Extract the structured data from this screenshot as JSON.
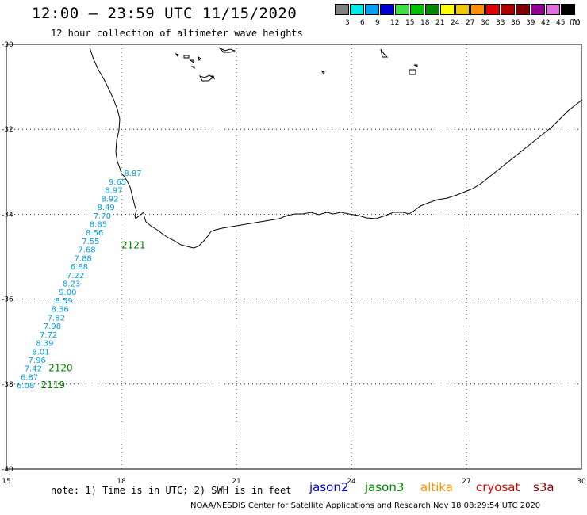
{
  "header": {
    "title": "12:00 — 23:59 UTC 11/15/2020",
    "subtitle": "12 hour collection of altimeter wave heights"
  },
  "color_scale": {
    "unit": "(ft)",
    "bins": [
      {
        "label": "3",
        "color": "#808080"
      },
      {
        "label": "6",
        "color": "#00e8e8"
      },
      {
        "label": "9",
        "color": "#00a0f0"
      },
      {
        "label": "12",
        "color": "#0000d0"
      },
      {
        "label": "15",
        "color": "#40e040"
      },
      {
        "label": "18",
        "color": "#00c000"
      },
      {
        "label": "21",
        "color": "#008800"
      },
      {
        "label": "24",
        "color": "#ffff00"
      },
      {
        "label": "27",
        "color": "#f0c800"
      },
      {
        "label": "30",
        "color": "#ff9000"
      },
      {
        "label": "33",
        "color": "#e00000"
      },
      {
        "label": "36",
        "color": "#b00000"
      },
      {
        "label": "39",
        "color": "#800000"
      },
      {
        "label": "42",
        "color": "#900090"
      },
      {
        "label": "45",
        "color": "#e070e0"
      },
      {
        "label": "70",
        "color": "#000000"
      }
    ]
  },
  "map": {
    "lon_range": [
      15,
      30
    ],
    "lat_range": [
      -40,
      -30
    ],
    "lon_ticks": [
      "15",
      "18",
      "21",
      "24",
      "27",
      "30"
    ],
    "lat_ticks": [
      "-30",
      "-32",
      "-34",
      "-36",
      "-38",
      "-40"
    ],
    "grid": "dotted"
  },
  "track_readings": [
    {
      "lon": 18.3,
      "lat": -33.1,
      "value": "8.87"
    },
    {
      "lon": 17.9,
      "lat": -33.3,
      "value": "9.65"
    },
    {
      "lon": 17.8,
      "lat": -33.5,
      "value": "8.97"
    },
    {
      "lon": 17.7,
      "lat": -33.7,
      "value": "8.92"
    },
    {
      "lon": 17.6,
      "lat": -33.9,
      "value": "8.49"
    },
    {
      "lon": 17.5,
      "lat": -34.1,
      "value": "7.70"
    },
    {
      "lon": 17.4,
      "lat": -34.3,
      "value": "8.85"
    },
    {
      "lon": 17.3,
      "lat": -34.5,
      "value": "8.56"
    },
    {
      "lon": 17.2,
      "lat": -34.7,
      "value": "7.55"
    },
    {
      "lon": 17.1,
      "lat": -34.9,
      "value": "7.68"
    },
    {
      "lon": 17.0,
      "lat": -35.1,
      "value": "7.88"
    },
    {
      "lon": 16.9,
      "lat": -35.3,
      "value": "6.88"
    },
    {
      "lon": 16.8,
      "lat": -35.5,
      "value": "7.22"
    },
    {
      "lon": 16.7,
      "lat": -35.7,
      "value": "8.23"
    },
    {
      "lon": 16.6,
      "lat": -35.9,
      "value": "9.00"
    },
    {
      "lon": 16.5,
      "lat": -36.1,
      "value": "8.59"
    },
    {
      "lon": 16.4,
      "lat": -36.3,
      "value": "8.36"
    },
    {
      "lon": 16.3,
      "lat": -36.5,
      "value": "7.82"
    },
    {
      "lon": 16.2,
      "lat": -36.7,
      "value": "7.98"
    },
    {
      "lon": 16.1,
      "lat": -36.9,
      "value": "7.72"
    },
    {
      "lon": 16.0,
      "lat": -37.1,
      "value": "8.39"
    },
    {
      "lon": 15.9,
      "lat": -37.3,
      "value": "8.01"
    },
    {
      "lon": 15.8,
      "lat": -37.5,
      "value": "7.96"
    },
    {
      "lon": 15.7,
      "lat": -37.7,
      "value": "7.42"
    },
    {
      "lon": 15.6,
      "lat": -37.9,
      "value": "6.87"
    },
    {
      "lon": 15.5,
      "lat": -38.1,
      "value": "6.08"
    }
  ],
  "pass_labels": [
    {
      "lon": 18.0,
      "lat": -34.8,
      "text": "2121"
    },
    {
      "lon": 16.1,
      "lat": -37.7,
      "text": "2120"
    },
    {
      "lon": 15.9,
      "lat": -38.1,
      "text": "2119"
    }
  ],
  "footer": {
    "note": "note: 1) Time is in UTC; 2) SWH is in feet",
    "satellites": [
      {
        "name": "jason2",
        "color": "#0000d0"
      },
      {
        "name": "jason3",
        "color": "#008800"
      },
      {
        "name": "altika",
        "color": "#ff9000"
      },
      {
        "name": "cryosat",
        "color": "#e00000"
      },
      {
        "name": "s3a",
        "color": "#800000"
      }
    ],
    "credit": "NOAA/NESDIS Center for Satellite Applications and Research    Nov 18 08:29:54 UTC 2020"
  }
}
